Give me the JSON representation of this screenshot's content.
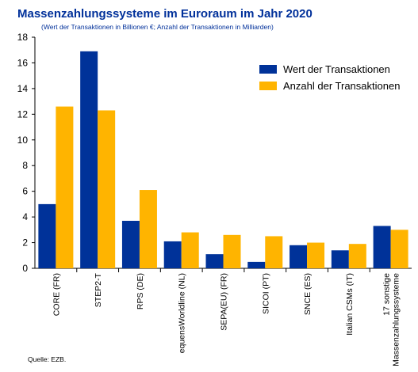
{
  "chart_data": {
    "type": "bar",
    "title": "Massenzahlungssysteme im Euroraum im Jahr 2020",
    "subtitle": "(Wert der Transaktionen in Billionen €; Anzahl der Transaktionen in Milliarden)",
    "categories": [
      [
        "CORE (FR)"
      ],
      [
        "STEP2-T"
      ],
      [
        "RPS (DE)"
      ],
      [
        "equensWorldline (NL)"
      ],
      [
        "SEPA(EU) (FR)"
      ],
      [
        "SICOI (PT)"
      ],
      [
        "SNCE (ES)"
      ],
      [
        "Italian CSMs (IT)"
      ],
      [
        "17 sonstige",
        "Massenzahlungssysteme"
      ]
    ],
    "series": [
      {
        "name": "Wert der Transaktionen",
        "color": "#003299",
        "values": [
          5.0,
          16.9,
          3.7,
          2.1,
          1.1,
          0.5,
          1.8,
          1.4,
          3.3
        ]
      },
      {
        "name": "Anzahl der Transaktionen",
        "color": "#ffb400",
        "values": [
          12.6,
          12.3,
          6.1,
          2.8,
          2.6,
          2.5,
          2.0,
          1.9,
          3.0
        ]
      }
    ],
    "yticks": [
      0,
      2,
      4,
      6,
      8,
      10,
      12,
      14,
      16,
      18
    ],
    "ylim": [
      0,
      18
    ],
    "grid": false,
    "legend_position": "top-right"
  },
  "source": "Quelle: EZB."
}
